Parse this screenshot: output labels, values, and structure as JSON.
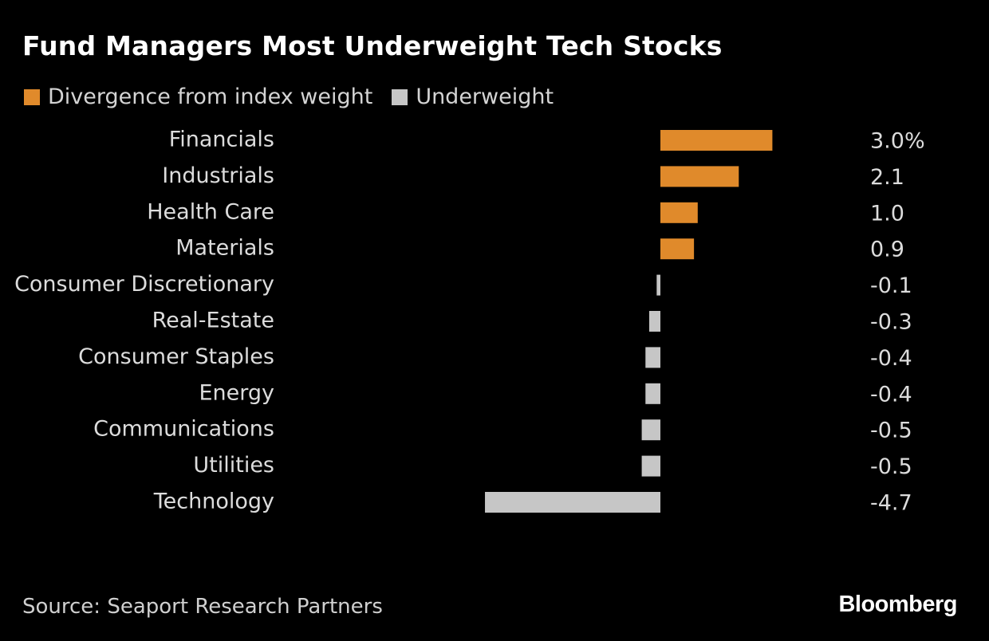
{
  "title": "Fund Managers Most Underweight Tech Stocks",
  "legend": [
    {
      "label": "Divergence from index weight",
      "color": "#e08a2b"
    },
    {
      "label": "Underweight",
      "color": "#c6c6c6"
    }
  ],
  "source": "Source: Seaport Research Partners",
  "brand": "Bloomberg",
  "colors": {
    "background": "#000000",
    "positive": "#e08a2b",
    "negative": "#c6c6c6",
    "text": "#dcdcdc"
  },
  "chart_data": {
    "type": "bar",
    "orientation": "horizontal",
    "categories": [
      "Financials",
      "Industrials",
      "Health Care",
      "Materials",
      "Consumer Discretionary",
      "Real-Estate",
      "Consumer Staples",
      "Energy",
      "Communications",
      "Utilities",
      "Technology"
    ],
    "values": [
      3.0,
      2.1,
      1.0,
      0.9,
      -0.1,
      -0.3,
      -0.4,
      -0.4,
      -0.5,
      -0.5,
      -4.7
    ],
    "value_labels": [
      "3.0%",
      "2.1",
      "1.0",
      "0.9",
      "-0.1",
      "-0.3",
      "-0.4",
      "-0.4",
      "-0.5",
      "-0.5",
      "-4.7"
    ],
    "xlim": [
      -4.7,
      3.0
    ],
    "grid": false
  }
}
